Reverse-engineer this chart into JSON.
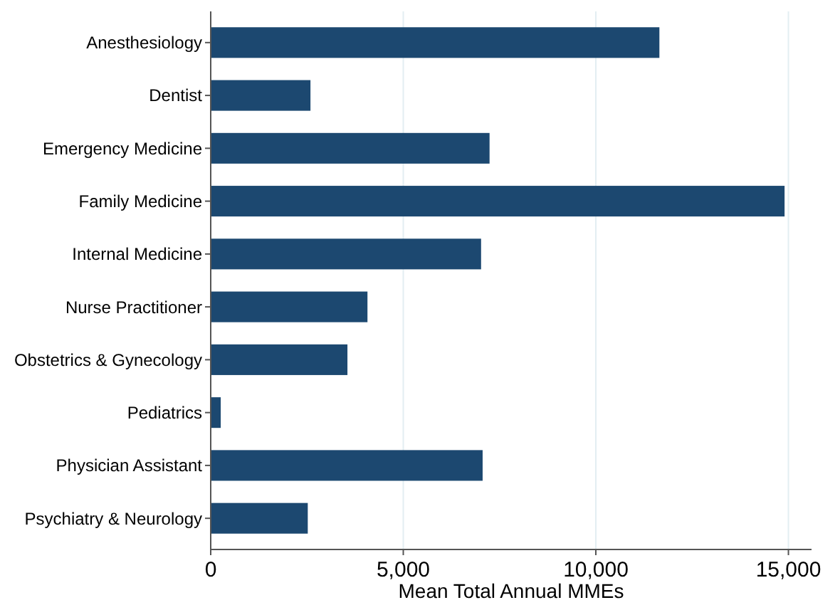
{
  "chart_data": {
    "type": "bar",
    "orientation": "horizontal",
    "xlabel": "Mean Total Annual MMEs",
    "categories": [
      "Anesthesiology",
      "Dentist",
      "Emergency Medicine",
      "Family Medicine",
      "Internal Medicine",
      "Nurse Practitioner",
      "Obstetrics & Gynecology",
      "Pediatrics",
      "Physician Assistant",
      "Psychiatry & Neurology"
    ],
    "values": [
      11650,
      2590,
      7240,
      14900,
      7020,
      4070,
      3550,
      260,
      7060,
      2520
    ],
    "color": "#1c4870",
    "xlim": [
      0,
      15600
    ],
    "xticks": [
      0,
      {
        "value": 5000,
        "label": "5,000"
      },
      {
        "value": 10000,
        "label": "10,000"
      },
      {
        "value": 15000,
        "label": "15,000"
      }
    ],
    "grid": "x"
  }
}
